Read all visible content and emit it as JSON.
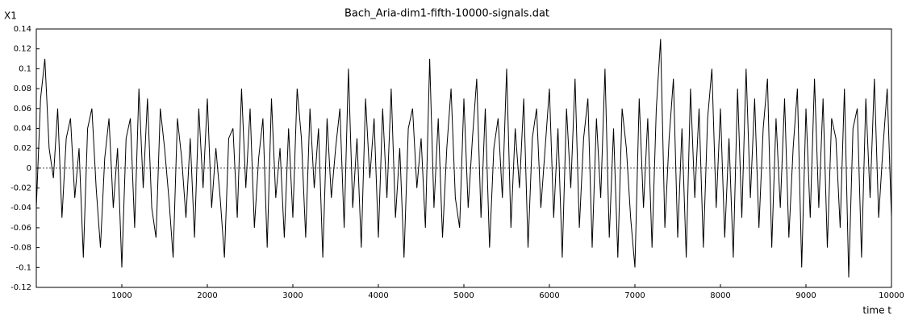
{
  "chart_data": {
    "type": "line",
    "title": "Bach_Aria-dim1-fifth-10000-signals.dat",
    "y_label": "X1",
    "x_label": "time t",
    "color": "#000000",
    "zero_line": true,
    "grid": false,
    "x": [
      0,
      50,
      100,
      150,
      200,
      250,
      300,
      350,
      400,
      450,
      500,
      550,
      600,
      650,
      700,
      750,
      800,
      850,
      900,
      950,
      1000,
      1050,
      1100,
      1150,
      1200,
      1250,
      1300,
      1350,
      1400,
      1450,
      1500,
      1550,
      1600,
      1650,
      1700,
      1750,
      1800,
      1850,
      1900,
      1950,
      2000,
      2050,
      2100,
      2150,
      2200,
      2250,
      2300,
      2350,
      2400,
      2450,
      2500,
      2550,
      2600,
      2650,
      2700,
      2750,
      2800,
      2850,
      2900,
      2950,
      3000,
      3050,
      3100,
      3150,
      3200,
      3250,
      3300,
      3350,
      3400,
      3450,
      3500,
      3550,
      3600,
      3650,
      3700,
      3750,
      3800,
      3850,
      3900,
      3950,
      4000,
      4050,
      4100,
      4150,
      4200,
      4250,
      4300,
      4350,
      4400,
      4450,
      4500,
      4550,
      4600,
      4650,
      4700,
      4750,
      4800,
      4850,
      4900,
      4950,
      5000,
      5050,
      5100,
      5150,
      5200,
      5250,
      5300,
      5350,
      5400,
      5450,
      5500,
      5550,
      5600,
      5650,
      5700,
      5750,
      5800,
      5850,
      5900,
      5950,
      6000,
      6050,
      6100,
      6150,
      6200,
      6250,
      6300,
      6350,
      6400,
      6450,
      6500,
      6550,
      6600,
      6650,
      6700,
      6750,
      6800,
      6850,
      6900,
      6950,
      7000,
      7050,
      7100,
      7150,
      7200,
      7250,
      7300,
      7350,
      7400,
      7450,
      7500,
      7550,
      7600,
      7650,
      7700,
      7750,
      7800,
      7850,
      7900,
      7950,
      8000,
      8050,
      8100,
      8150,
      8200,
      8250,
      8300,
      8350,
      8400,
      8450,
      8500,
      8550,
      8600,
      8650,
      8700,
      8750,
      8800,
      8850,
      8900,
      8950,
      9000,
      9050,
      9100,
      9150,
      9200,
      9250,
      9300,
      9350,
      9400,
      9450,
      9500,
      9550,
      9600,
      9650,
      9700,
      9750,
      9800,
      9850,
      9900,
      9950,
      10000
    ],
    "values": [
      -0.04,
      0.07,
      0.11,
      0.02,
      -0.01,
      0.06,
      -0.05,
      0.03,
      0.05,
      -0.03,
      0.02,
      -0.09,
      0.04,
      0.06,
      -0.02,
      -0.08,
      0.01,
      0.05,
      -0.04,
      0.02,
      -0.1,
      0.03,
      0.05,
      -0.06,
      0.08,
      -0.02,
      0.07,
      -0.04,
      -0.07,
      0.06,
      0.02,
      -0.03,
      -0.09,
      0.05,
      0.01,
      -0.05,
      0.03,
      -0.07,
      0.06,
      -0.02,
      0.07,
      -0.04,
      0.02,
      -0.03,
      -0.09,
      0.03,
      0.04,
      -0.05,
      0.08,
      -0.02,
      0.06,
      -0.06,
      0.01,
      0.05,
      -0.08,
      0.07,
      -0.03,
      0.02,
      -0.07,
      0.04,
      -0.05,
      0.08,
      0.03,
      -0.07,
      0.06,
      -0.02,
      0.04,
      -0.09,
      0.05,
      -0.03,
      0.02,
      0.06,
      -0.06,
      0.1,
      -0.04,
      0.03,
      -0.08,
      0.07,
      -0.01,
      0.05,
      -0.07,
      0.06,
      -0.03,
      0.08,
      -0.05,
      0.02,
      -0.09,
      0.04,
      0.06,
      -0.02,
      0.03,
      -0.06,
      0.11,
      -0.04,
      0.05,
      -0.07,
      0.02,
      0.08,
      -0.03,
      -0.06,
      0.07,
      -0.04,
      0.03,
      0.09,
      -0.05,
      0.06,
      -0.08,
      0.02,
      0.05,
      -0.03,
      0.1,
      -0.06,
      0.04,
      -0.02,
      0.07,
      -0.08,
      0.03,
      0.06,
      -0.04,
      0.02,
      0.08,
      -0.05,
      0.04,
      -0.09,
      0.06,
      -0.02,
      0.09,
      -0.06,
      0.03,
      0.07,
      -0.08,
      0.05,
      -0.03,
      0.1,
      -0.07,
      0.04,
      -0.09,
      0.06,
      0.02,
      -0.05,
      -0.1,
      0.07,
      -0.04,
      0.05,
      -0.08,
      0.06,
      0.13,
      -0.06,
      0.03,
      0.09,
      -0.07,
      0.04,
      -0.09,
      0.08,
      -0.03,
      0.06,
      -0.08,
      0.05,
      0.1,
      -0.04,
      0.06,
      -0.07,
      0.03,
      -0.09,
      0.08,
      -0.05,
      0.1,
      -0.03,
      0.07,
      -0.06,
      0.04,
      0.09,
      -0.08,
      0.05,
      -0.04,
      0.07,
      -0.07,
      0.02,
      0.08,
      -0.1,
      0.06,
      -0.05,
      0.09,
      -0.04,
      0.07,
      -0.08,
      0.05,
      0.03,
      -0.06,
      0.08,
      -0.11,
      0.04,
      0.06,
      -0.09,
      0.07,
      -0.03,
      0.09,
      -0.05,
      0.02,
      0.08,
      -0.05
    ],
    "xlim": [
      0,
      10000
    ],
    "xticks": [
      1000,
      2000,
      3000,
      4000,
      5000,
      6000,
      7000,
      8000,
      9000,
      10000
    ],
    "ylim": [
      -0.12,
      0.14
    ],
    "yticks": [
      -0.12,
      -0.1,
      -0.08,
      -0.06,
      -0.04,
      -0.02,
      0,
      0.02,
      0.04,
      0.06,
      0.08,
      0.1,
      0.12,
      0.14
    ]
  }
}
